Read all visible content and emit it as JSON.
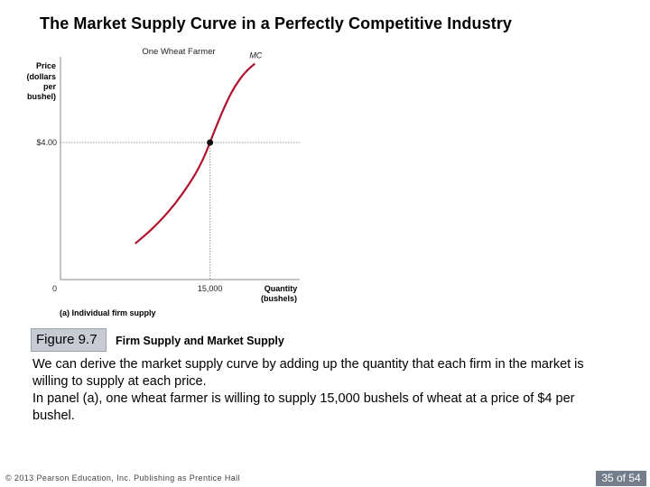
{
  "slide": {
    "title": "The Market Supply Curve in a Perfectly Competitive Industry",
    "figure_label": "Figure 9.7",
    "figure_caption": "Firm Supply and Market Supply",
    "paragraph_1": "We can derive the market supply curve by adding up the quantity that each firm in the market is willing to supply at each price.",
    "paragraph_2": "In panel (a), one wheat farmer is willing to supply 15,000 bushels of wheat at a price of $4 per bushel.",
    "footer_copyright": "© 2013 Pearson Education, Inc. Publishing as Prentice Hall",
    "page_number": "35 of 54"
  },
  "chart_data": {
    "type": "line",
    "title": "One Wheat Farmer",
    "ylabel_lines": [
      "Price",
      "(dollars",
      "per",
      "bushel)"
    ],
    "xlabel_lines": [
      "Quantity",
      "(bushels)"
    ],
    "origin_label": "0",
    "panel_label": "(a) Individual firm supply",
    "y_tick_label": "$4.00",
    "x_tick_label": "15,000",
    "xlim": [
      0,
      24000
    ],
    "ylim": [
      0,
      6.5
    ],
    "grid": false,
    "series": [
      {
        "name": "MC",
        "color": "#b0122f",
        "x": [
          7500,
          9500,
          11500,
          13300,
          14300,
          15000,
          15800,
          16700,
          17500,
          18500,
          19500
        ],
        "y": [
          1.05,
          1.55,
          2.2,
          2.95,
          3.5,
          4.0,
          4.6,
          5.2,
          5.65,
          6.05,
          6.3
        ]
      }
    ],
    "point": {
      "x": 15000,
      "y": 4.0
    },
    "reference_lines": {
      "x": 15000,
      "y": 4.0
    }
  }
}
